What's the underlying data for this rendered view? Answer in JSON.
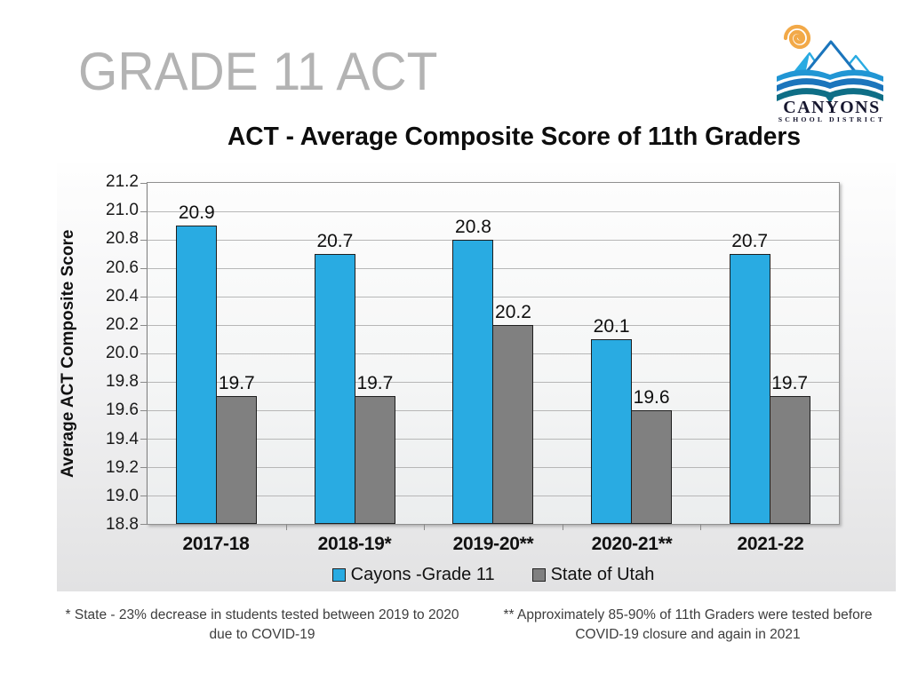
{
  "page": {
    "title": "GRADE 11 ACT"
  },
  "logo": {
    "name": "CANYONS",
    "tagline": "SCHOOL DISTRICT"
  },
  "chart_data": {
    "type": "bar",
    "title": "ACT - Average Composite Score of 11th Graders",
    "ylabel": "Average ACT Composite Score",
    "ylim": [
      18.8,
      21.2
    ],
    "ytick_step": 0.2,
    "yticks": [
      "21.2",
      "21.0",
      "20.8",
      "20.6",
      "20.4",
      "20.2",
      "20.0",
      "19.8",
      "19.6",
      "19.4",
      "19.2",
      "19.0",
      "18.8"
    ],
    "categories": [
      "2017-18",
      "2018-19*",
      "2019-20**",
      "2020-21**",
      "2021-22"
    ],
    "series": [
      {
        "name": "Cayons -Grade 11",
        "color": "#29ABE2",
        "values": [
          20.9,
          20.7,
          20.8,
          20.1,
          20.7
        ]
      },
      {
        "name": "State of Utah",
        "color": "#808080",
        "values": [
          19.7,
          19.7,
          20.2,
          19.6,
          19.7
        ]
      }
    ],
    "grid": true,
    "legend_position": "bottom"
  },
  "footnotes": {
    "left": "* State - 23% decrease in students tested between 2019 to 2020 due to COVID-19",
    "right": "** Approximately 85-90% of 11th Graders were tested before COVID-19 closure and again in 2021"
  },
  "colors": {
    "slide_title": "#b3b3b3",
    "cayons_blue": "#29ABE2",
    "state_gray": "#808080",
    "logo_orange": "#F2A948",
    "logo_dark_blue": "#1B75BC",
    "logo_light_blue": "#29ABE2",
    "logo_teal": "#0E6E86"
  }
}
